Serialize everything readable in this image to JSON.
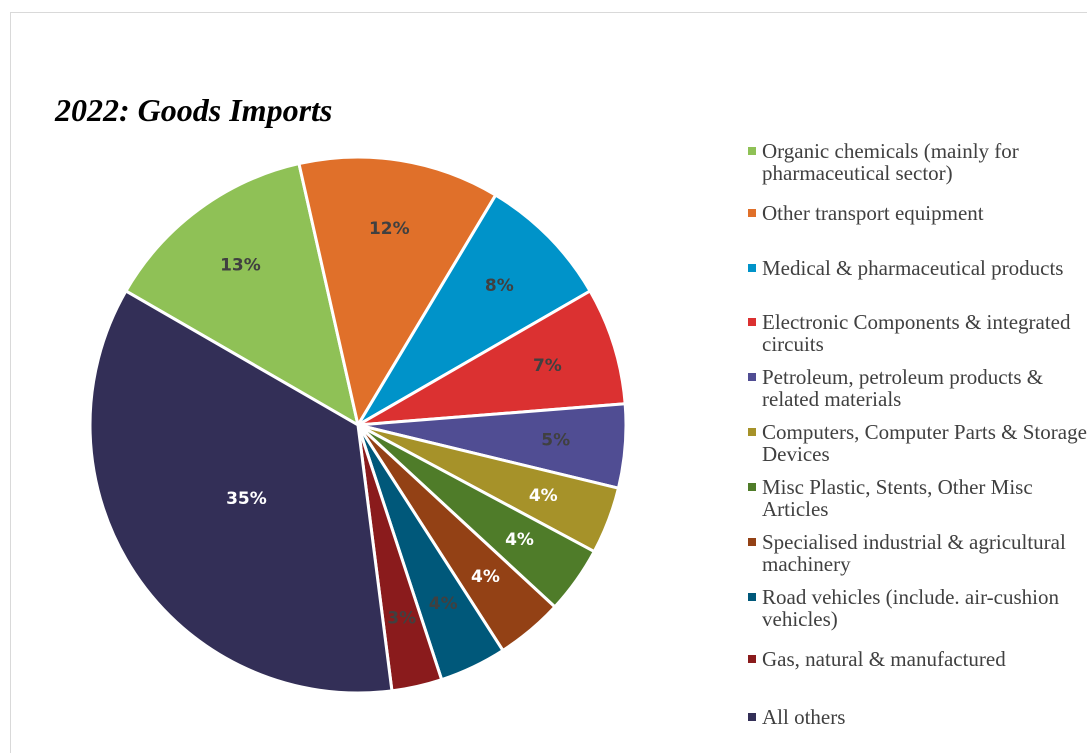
{
  "chart_data": {
    "type": "pie",
    "title": "2022: Goods Imports",
    "categories": [
      "Organic chemicals (mainly for pharmaceutical sector)",
      "Other transport equipment",
      "Medical & pharmaceutical products",
      "Electronic Components & integrated circuits",
      "Petroleum, petroleum products & related materials",
      "Computers, Computer Parts & Storage Devices",
      "Misc Plastic, Stents, Other Misc Articles",
      "Specialised industrial & agricultural machinery",
      "Road vehicles (include. air-cushion vehicles)",
      "Gas, natural & manufactured",
      "All others"
    ],
    "values": [
      13,
      12,
      8,
      7,
      5,
      4,
      4,
      4,
      4,
      3,
      35
    ],
    "value_labels": [
      "13%",
      "12%",
      "8%",
      "7%",
      "5%",
      "4%",
      "4%",
      "4%",
      "4%",
      "3%",
      "35%"
    ],
    "colors": [
      "#8fc156",
      "#e0702a",
      "#0093c9",
      "#db3131",
      "#504d93",
      "#a69229",
      "#4f7c29",
      "#934115",
      "#00587a",
      "#8a1b1c",
      "#332f57"
    ],
    "label_colors": [
      "#404040",
      "#404040",
      "#404040",
      "#404040",
      "#404040",
      "#ffffff",
      "#ffffff",
      "#ffffff",
      "#404040",
      "#404040",
      "#ffffff"
    ],
    "legend": "right"
  }
}
